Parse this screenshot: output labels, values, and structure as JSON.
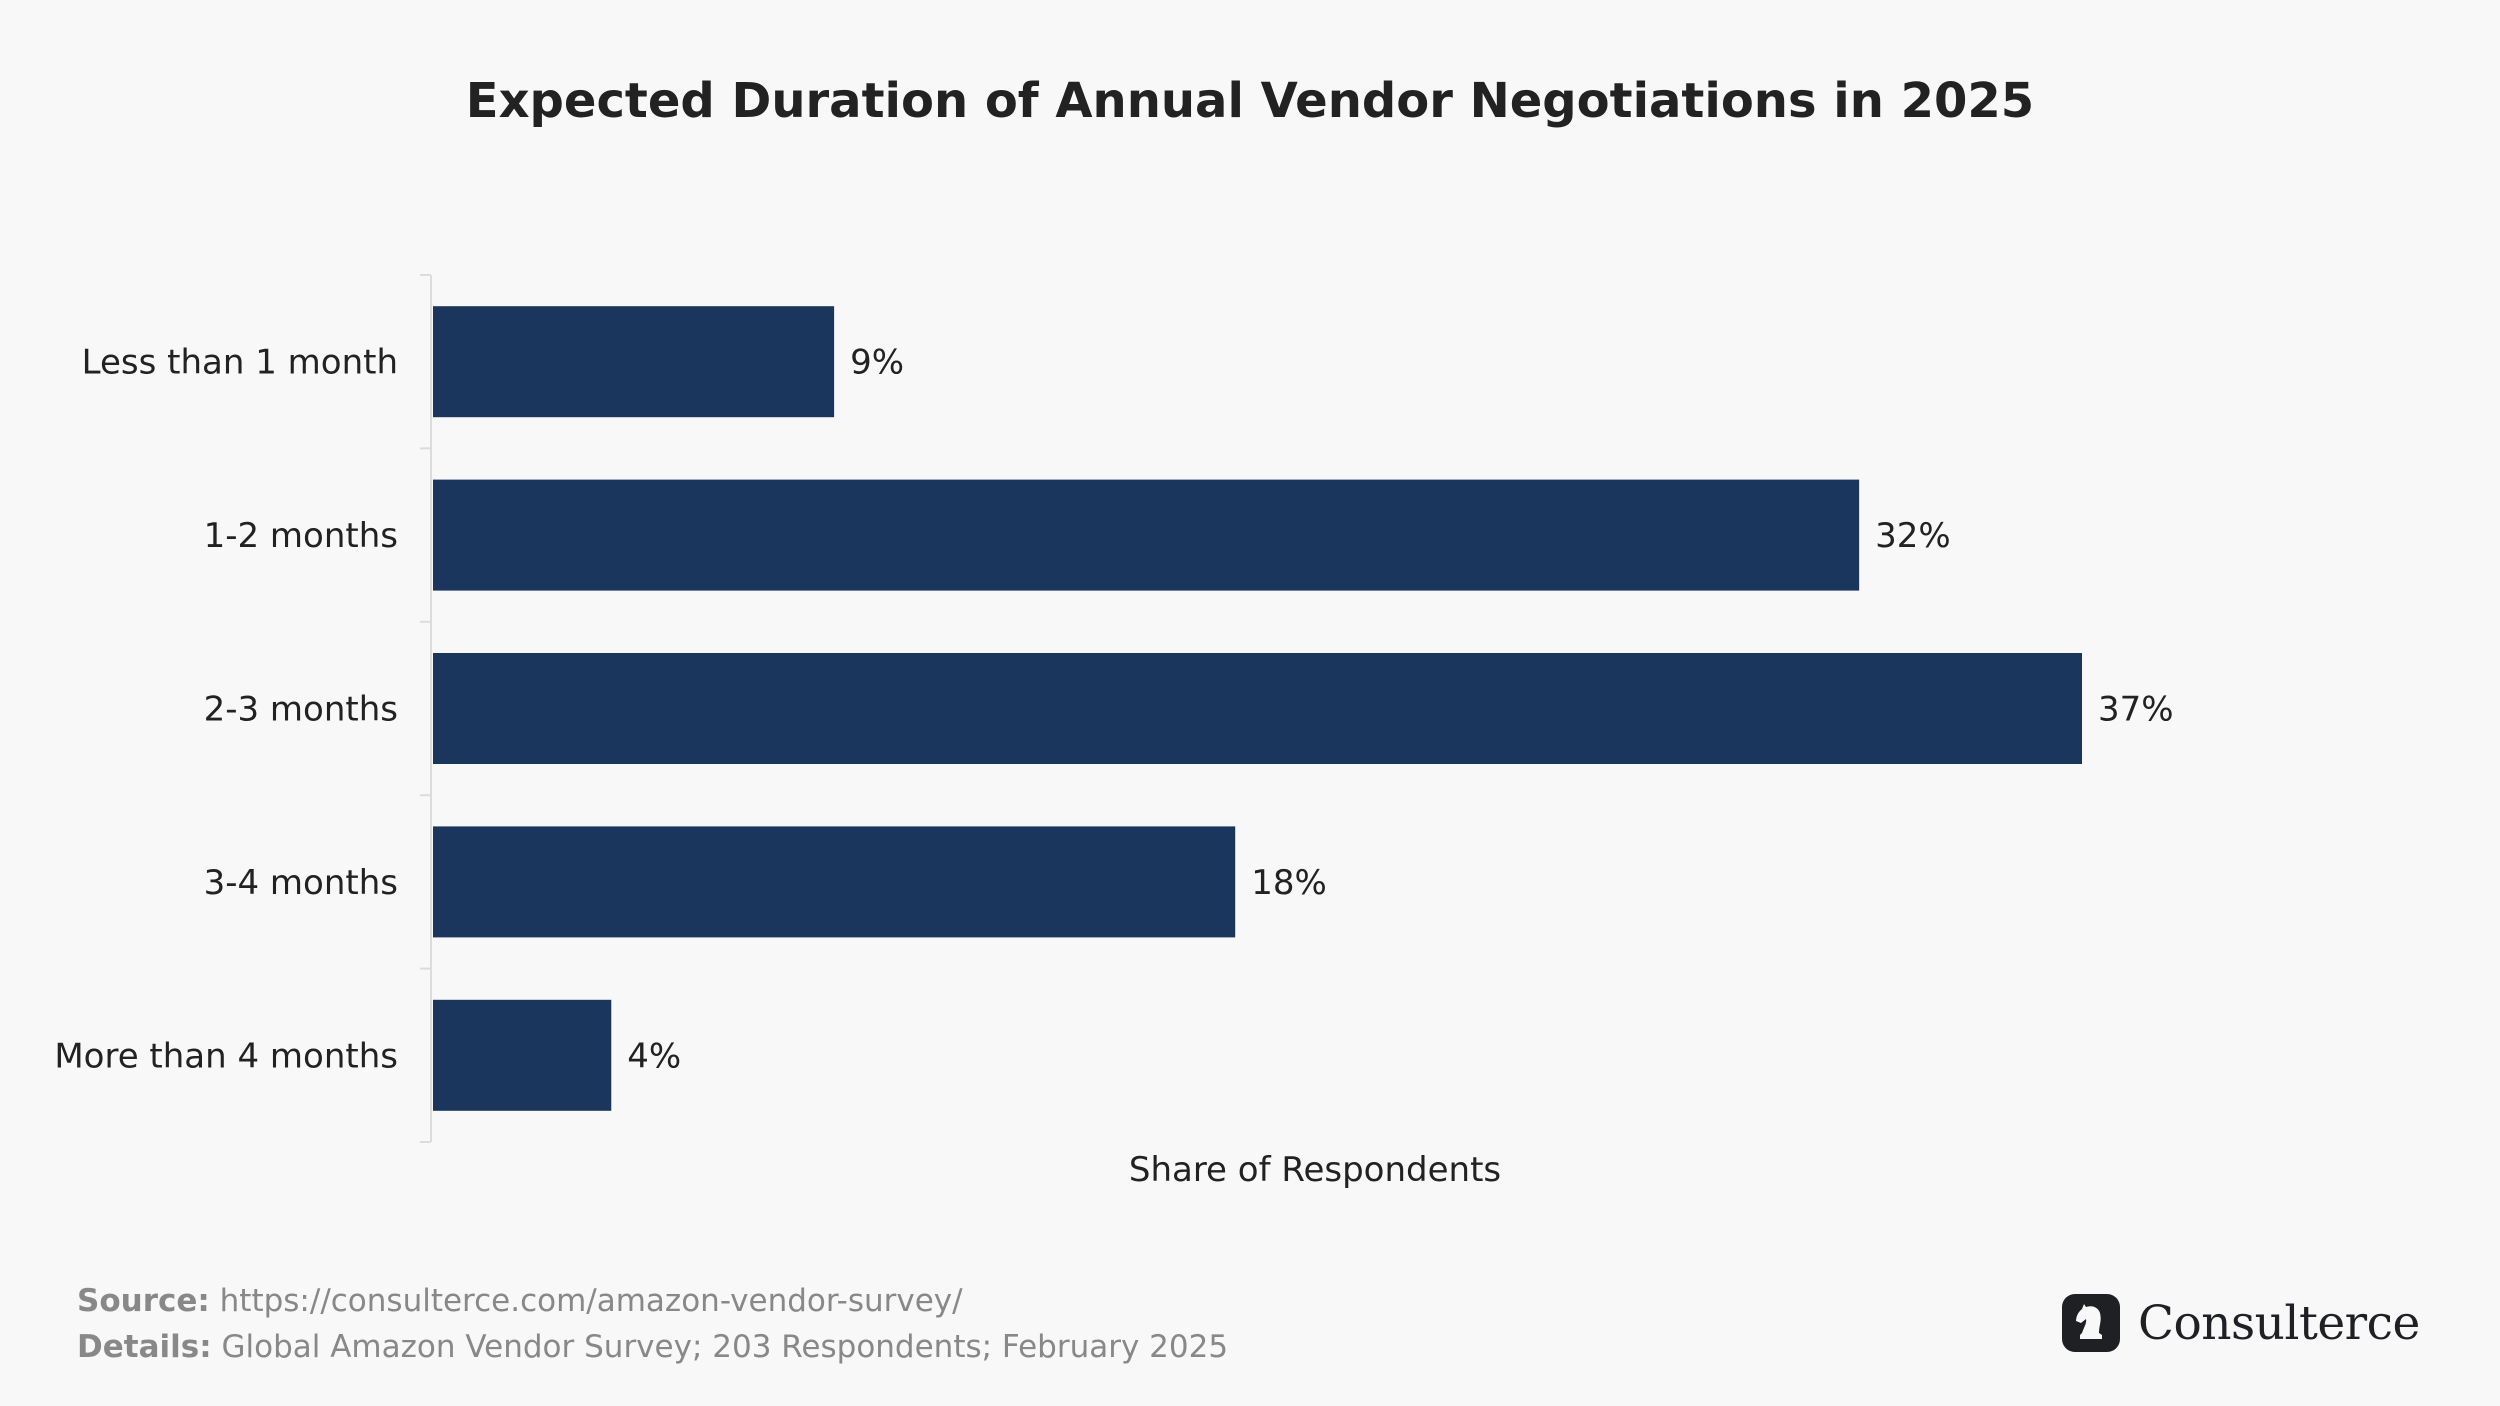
{
  "chart_data": {
    "type": "bar",
    "orientation": "horizontal",
    "title": "Expected Duration of Annual Vendor Negotiations in 2025",
    "xlabel": "Share of Respondents",
    "ylabel": "",
    "categories": [
      "Less than 1 month",
      "1-2 months",
      "2-3 months",
      "3-4 months",
      "More than 4 months"
    ],
    "values": [
      9,
      32,
      37,
      18,
      4
    ],
    "value_labels": [
      "9%",
      "32%",
      "37%",
      "18%",
      "4%"
    ],
    "xlim": [
      0,
      37
    ],
    "grid": false,
    "bar_color": "#1b365d"
  },
  "footer": {
    "source_label": "Source:",
    "source_text": "https://consulterce.com/amazon-vendor-survey/",
    "details_label": "Details:",
    "details_text": "Global Amazon Vendor Survey; 203 Respondents; February 2025"
  },
  "brand": {
    "name": "Consulterce",
    "icon": "knight-chess-icon"
  }
}
